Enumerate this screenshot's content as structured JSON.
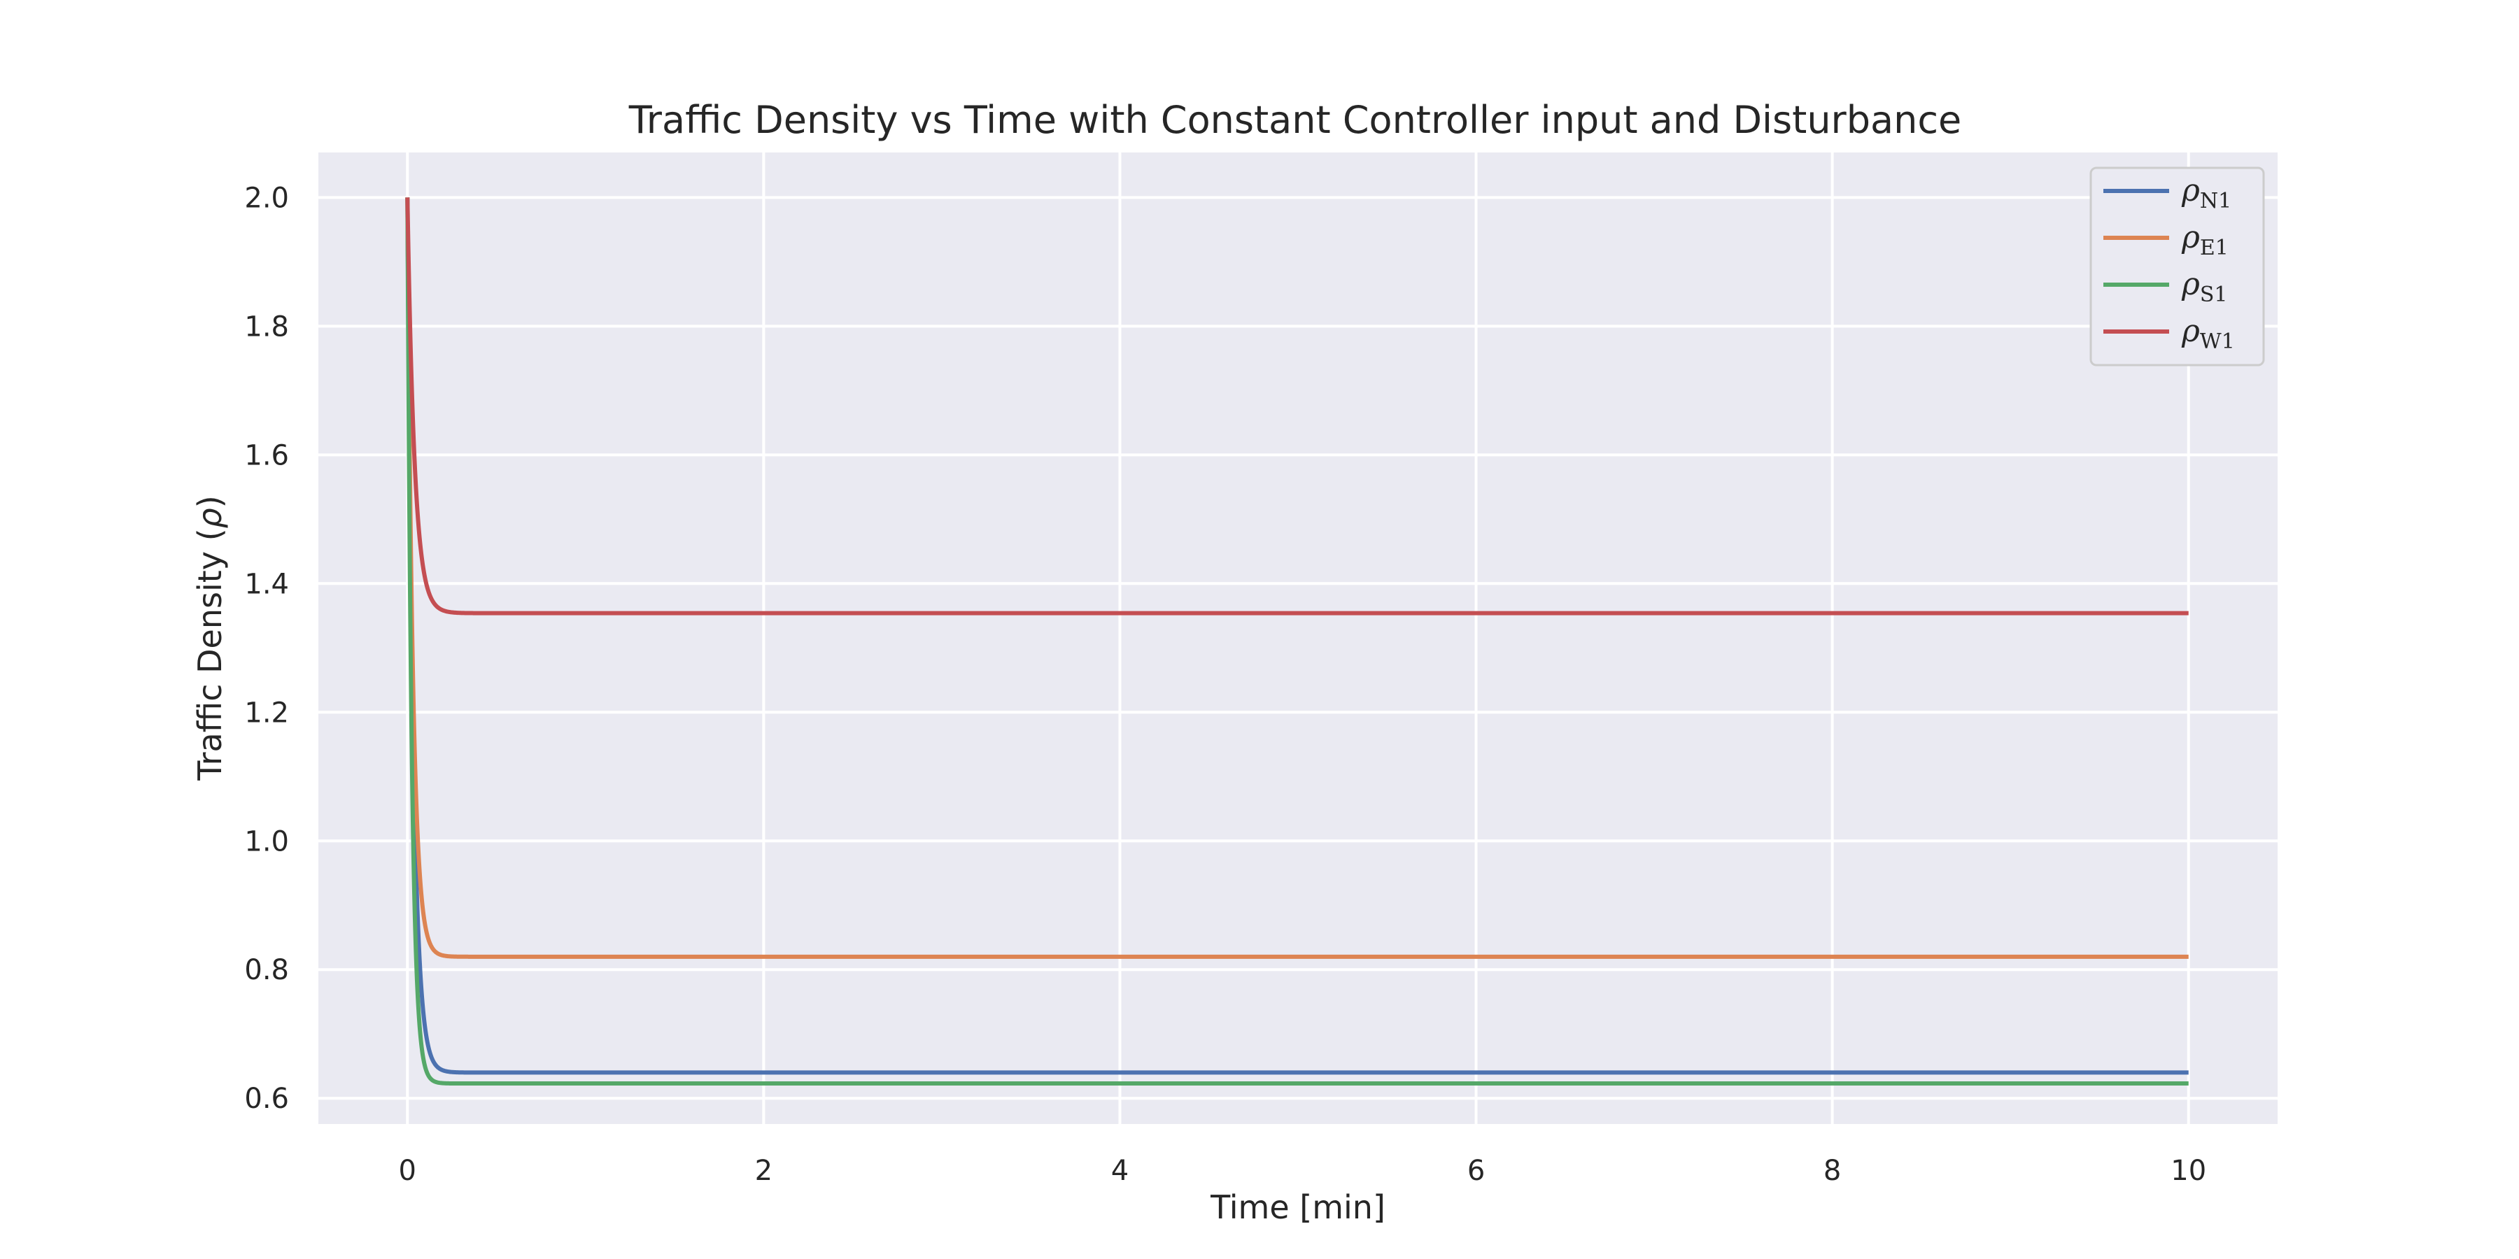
{
  "chart_data": {
    "type": "line",
    "title": "Traffic Density vs Time with Constant Controller input and Disturbance",
    "xlabel": "Time [min]",
    "ylabel_text": "Traffic Density (",
    "ylabel_symbol": "ρ",
    "ylabel_close": ")",
    "xlim": [
      -0.5,
      10.5
    ],
    "ylim": [
      0.56,
      2.07
    ],
    "xticks": [
      0,
      2,
      4,
      6,
      8,
      10
    ],
    "yticks": [
      0.6,
      0.8,
      1.0,
      1.2,
      1.4,
      1.6,
      1.8,
      2.0
    ],
    "xtick_labels": [
      "0",
      "2",
      "4",
      "6",
      "8",
      "10"
    ],
    "ytick_labels": [
      "0.6",
      "0.8",
      "1.0",
      "1.2",
      "1.4",
      "1.6",
      "1.8",
      "2.0"
    ],
    "grid": true,
    "legend_position": "top-right",
    "background": "#eaeaf2",
    "series": [
      {
        "name": "ρN1",
        "symbol": "ρ",
        "subscript": "N1",
        "color": "#4c72b0",
        "initial": 2.0,
        "final": 0.64,
        "rate": 30
      },
      {
        "name": "ρE1",
        "symbol": "ρ",
        "subscript": "E1",
        "color": "#dd8452",
        "initial": 2.0,
        "final": 0.82,
        "rate": 32
      },
      {
        "name": "ρS1",
        "symbol": "ρ",
        "subscript": "S1",
        "color": "#55a868",
        "initial": 2.0,
        "final": 0.623,
        "rate": 40
      },
      {
        "name": "ρW1",
        "symbol": "ρ",
        "subscript": "W1",
        "color": "#c44e52",
        "initial": 2.0,
        "final": 1.354,
        "rate": 25
      }
    ],
    "x_start": 0,
    "x_end": 10
  }
}
